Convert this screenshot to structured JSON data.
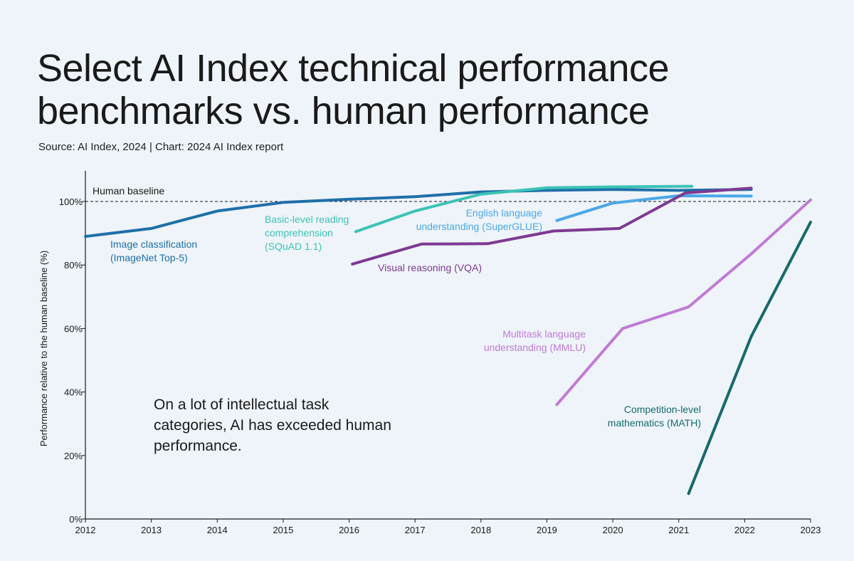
{
  "header": {
    "title_line1": "Select AI Index technical performance",
    "title_line2": "benchmarks vs. human performance",
    "source": "Source: AI Index, 2024 | Chart: 2024 AI Index report"
  },
  "annotation": "On a lot of intellectual task categories, AI has exceeded human performance.",
  "chart_data": {
    "type": "line",
    "title": "Select AI Index technical performance benchmarks vs. human performance",
    "xlabel": "",
    "ylabel": "Performance relative to the human baseline (%)",
    "xlim": [
      2012,
      2023
    ],
    "ylim": [
      0,
      110
    ],
    "x_ticks": [
      "2012",
      "2013",
      "2014",
      "2015",
      "2016",
      "2017",
      "2018",
      "2019",
      "2020",
      "2021",
      "2022",
      "2023"
    ],
    "y_ticks": [
      {
        "value": 0,
        "label": "0%"
      },
      {
        "value": 20,
        "label": "20%"
      },
      {
        "value": 40,
        "label": "40%"
      },
      {
        "value": 60,
        "label": "60%"
      },
      {
        "value": 80,
        "label": "80%"
      },
      {
        "value": 100,
        "label": "100%"
      }
    ],
    "baseline": {
      "value": 100,
      "label": "Human baseline"
    },
    "series": [
      {
        "name": "Image classification (ImageNet Top-5)",
        "label_lines": [
          "Image classification",
          "(ImageNet Top-5)"
        ],
        "color": "#1e6fa8",
        "x": [
          2012,
          2013,
          2014,
          2015,
          2016,
          2017,
          2018,
          2019,
          2020,
          2021,
          2022.1
        ],
        "y": [
          89,
          91.5,
          97,
          99.7,
          100.7,
          101.5,
          103,
          103.5,
          103.8,
          103.5,
          103.8
        ]
      },
      {
        "name": "Basic-level reading comprehension (SQuAD 1.1)",
        "label_lines": [
          "Basic-level reading",
          "comprehension",
          "(SQuAD 1.1)"
        ],
        "color": "#3cc3b5",
        "x": [
          2016.1,
          2017,
          2018,
          2019,
          2020,
          2021.2
        ],
        "y": [
          90.5,
          97,
          102.3,
          104.3,
          104.6,
          104.8
        ]
      },
      {
        "name": "English language understanding (SuperGLUE)",
        "label_lines": [
          "English language",
          "understanding (SuperGLUE)"
        ],
        "color": "#4aa8e8",
        "x": [
          2019.15,
          2020,
          2021,
          2022.1
        ],
        "y": [
          94,
          99.5,
          101.8,
          101.7
        ]
      },
      {
        "name": "Visual reasoning (VQA)",
        "label_lines": [
          "Visual reasoning (VQA)"
        ],
        "color": "#7e3a92",
        "x": [
          2016.05,
          2017.1,
          2018.1,
          2019.1,
          2020.1,
          2021.1,
          2022.1
        ],
        "y": [
          80.3,
          86.6,
          86.7,
          90.7,
          91.5,
          102.7,
          104.2
        ]
      },
      {
        "name": "Multitask language understanding (MMLU)",
        "label_lines": [
          "Multitask language",
          "understanding (MMLU)"
        ],
        "color": "#c07ad6",
        "x": [
          2019.15,
          2020.15,
          2021.15,
          2022.1,
          2023.0
        ],
        "y": [
          36,
          60,
          66.8,
          83.5,
          100.5
        ]
      },
      {
        "name": "Competition-level mathematics (MATH)",
        "label_lines": [
          "Competition-level",
          "mathematics (MATH)"
        ],
        "color": "#146b6b",
        "x": [
          2021.15,
          2022.1,
          2023.0
        ],
        "y": [
          8,
          57.5,
          93.5
        ]
      }
    ]
  }
}
